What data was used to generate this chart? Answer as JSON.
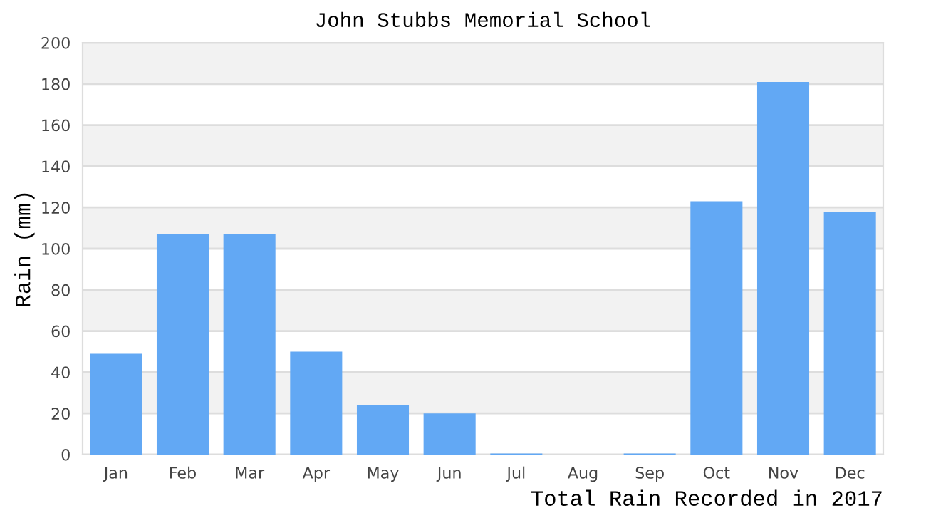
{
  "chart_data": {
    "type": "bar",
    "title": "John Stubbs Memorial School",
    "xlabel": "Total Rain Recorded in 2017",
    "ylabel": "Rain (mm)",
    "categories": [
      "Jan",
      "Feb",
      "Mar",
      "Apr",
      "May",
      "Jun",
      "Jul",
      "Aug",
      "Sep",
      "Oct",
      "Nov",
      "Dec"
    ],
    "values": [
      49,
      107,
      107,
      50,
      24,
      20,
      0.5,
      0,
      0.5,
      123,
      181,
      118
    ],
    "color": "#62a8f4",
    "ylim": [
      0,
      200
    ],
    "yticks": [
      0,
      20,
      40,
      60,
      80,
      100,
      120,
      140,
      160,
      180,
      200
    ],
    "grid": "y"
  }
}
